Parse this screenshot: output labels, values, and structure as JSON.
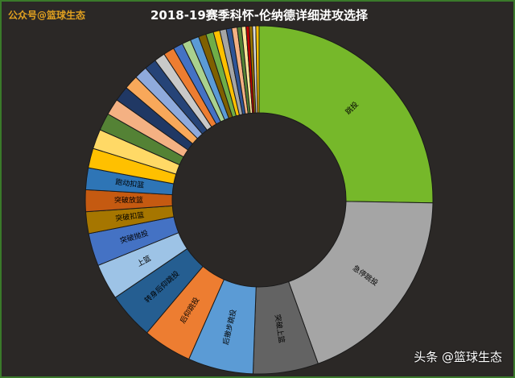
{
  "watermark_top": "公众号@篮球生态",
  "watermark_bottom": "头条 @篮球生态",
  "chart_data": {
    "type": "pie",
    "style": "donut",
    "title": "2018-19赛季科怀-伦纳德详细进攻选择",
    "categories": [
      "跳投",
      "急停跳投",
      "突破上篮",
      "后撤步跳投",
      "后仰跳投",
      "转身后仰跳投",
      "上篮",
      "突破抛投",
      "突破扣篮",
      "突破放篮",
      "跑动扣篮",
      "",
      "",
      "",
      "",
      "",
      "",
      "",
      "",
      "",
      "",
      "",
      "",
      "",
      "",
      "",
      "",
      "",
      "",
      "",
      "",
      "",
      "",
      "",
      "",
      ""
    ],
    "values": [
      25.0,
      19.0,
      6.0,
      6.0,
      4.5,
      4.3,
      3.3,
      3.0,
      2.0,
      2.0,
      2.0,
      1.8,
      1.8,
      1.6,
      1.5,
      1.4,
      1.3,
      1.2,
      1.1,
      1.0,
      1.0,
      0.9,
      0.8,
      0.8,
      0.7,
      0.7,
      0.6,
      0.6,
      0.5,
      0.5,
      0.4,
      0.4,
      0.3,
      0.3,
      0.3,
      0.3
    ],
    "colors": [
      "#76b82a",
      "#a5a5a5",
      "#636363",
      "#5b9bd5",
      "#ed7d31",
      "#255e91",
      "#9dc3e6",
      "#4472c4",
      "#a67600",
      "#c55a11",
      "#2e75b6",
      "#ffc000",
      "#ffd966",
      "#548235",
      "#f4b183",
      "#203864",
      "#f8a85a",
      "#8faadc",
      "#264478",
      "#c9c9c9",
      "#ed7d31",
      "#4472c4",
      "#a9d18e",
      "#5b9bd5",
      "#7f6000",
      "#70ad47",
      "#ffc000",
      "#a5a5a5",
      "#2f5597",
      "#f4b183",
      "#548235",
      "#ffe699",
      "#c00000",
      "#997300",
      "#d9d9d9",
      "#ffc000"
    ]
  }
}
